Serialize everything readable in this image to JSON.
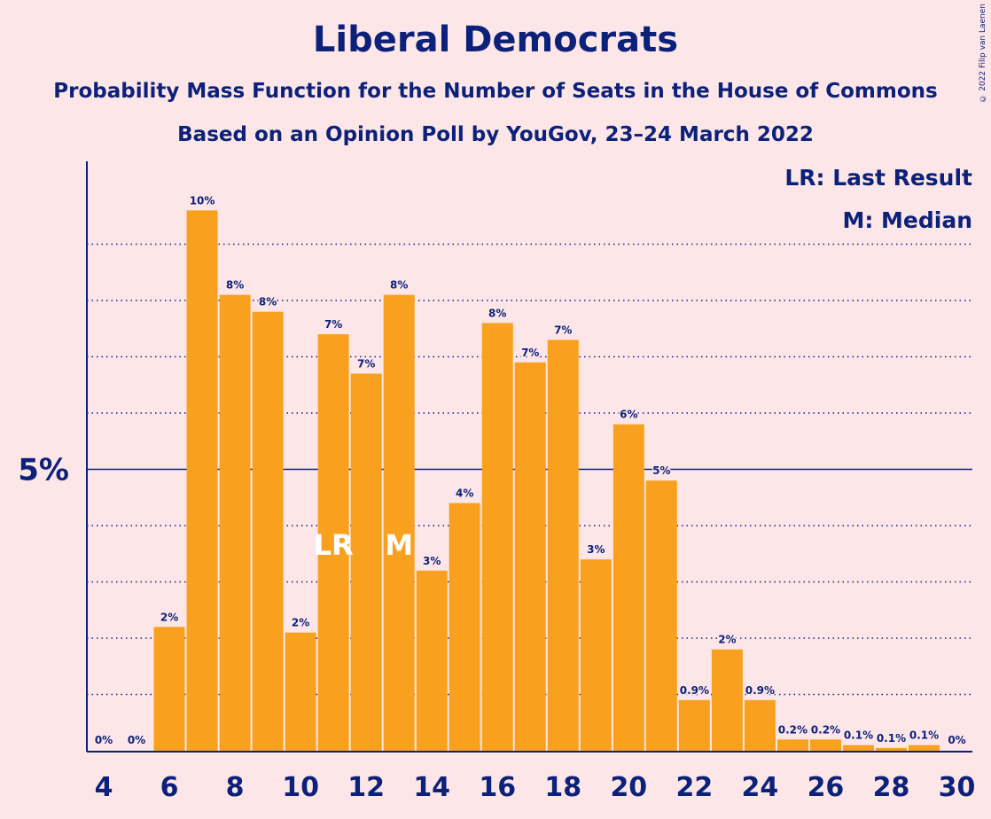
{
  "title": "Liberal Democrats",
  "subtitle": "Probability Mass Function for the Number of Seats in the House of Commons",
  "subtitle2": "Based on an Opinion Poll by YouGov, 23–24 March 2022",
  "copyright": "© 2022 Filip van Laenen",
  "legend": {
    "lr": "LR: Last Result",
    "m": "M: Median"
  },
  "colors": {
    "bar": "#f9a11e",
    "text": "#0c2179",
    "background": "#fde6e8"
  },
  "chart_data": {
    "type": "bar",
    "x": [
      4,
      5,
      6,
      7,
      8,
      9,
      10,
      11,
      12,
      13,
      14,
      15,
      16,
      17,
      18,
      19,
      20,
      21,
      22,
      23,
      24,
      25,
      26,
      27,
      28,
      29,
      30
    ],
    "values": [
      0,
      0,
      2.2,
      9.6,
      8.1,
      7.8,
      2.1,
      7.4,
      6.7,
      8.1,
      3.2,
      4.4,
      7.6,
      6.9,
      7.3,
      3.4,
      5.8,
      4.8,
      0.9,
      1.8,
      0.9,
      0.2,
      0.2,
      0.1,
      0.05,
      0.1,
      0
    ],
    "labels": [
      "0%",
      "0%",
      "2%",
      "10%",
      "8%",
      "8%",
      "2%",
      "7%",
      "7%",
      "8%",
      "3%",
      "4%",
      "8%",
      "7%",
      "7%",
      "3%",
      "6%",
      "5%",
      "0.9%",
      "2%",
      "0.9%",
      "0.2%",
      "0.2%",
      "0.1%",
      "0.1%",
      "0.1%",
      "0%"
    ],
    "xticks": [
      4,
      6,
      8,
      10,
      12,
      14,
      16,
      18,
      20,
      22,
      24,
      26,
      28,
      30
    ],
    "ytick_label": "5%",
    "ylim": [
      0,
      10.5
    ],
    "last_result": {
      "seat": 11,
      "label": "LR"
    },
    "median": {
      "seat": 13,
      "label": "M"
    },
    "grid": true
  }
}
